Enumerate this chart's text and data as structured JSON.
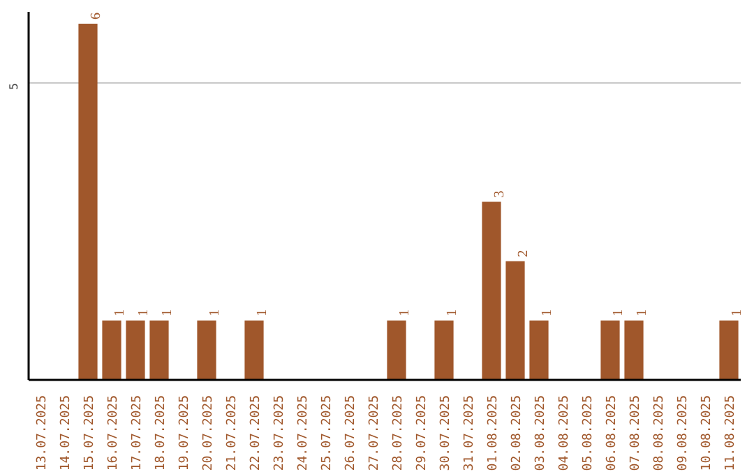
{
  "chart_data": {
    "type": "bar",
    "categories": [
      "13.07.2025",
      "14.07.2025",
      "15.07.2025",
      "16.07.2025",
      "17.07.2025",
      "18.07.2025",
      "19.07.2025",
      "20.07.2025",
      "21.07.2025",
      "22.07.2025",
      "23.07.2025",
      "24.07.2025",
      "25.07.2025",
      "26.07.2025",
      "27.07.2025",
      "28.07.2025",
      "29.07.2025",
      "30.07.2025",
      "31.07.2025",
      "01.08.2025",
      "02.08.2025",
      "03.08.2025",
      "04.08.2025",
      "05.08.2025",
      "06.08.2025",
      "07.08.2025",
      "08.08.2025",
      "09.08.2025",
      "10.08.2025",
      "11.08.2025"
    ],
    "values": [
      0,
      0,
      6,
      1,
      1,
      1,
      0,
      1,
      0,
      1,
      0,
      0,
      0,
      0,
      0,
      1,
      0,
      1,
      0,
      3,
      2,
      1,
      0,
      0,
      1,
      1,
      0,
      0,
      0,
      1
    ],
    "value_labels": [
      null,
      null,
      "6",
      "1",
      "1",
      "1",
      null,
      "1",
      null,
      "1",
      null,
      null,
      null,
      null,
      null,
      "1",
      null,
      "1",
      null,
      "3",
      "2",
      "1",
      null,
      null,
      "1",
      "1",
      null,
      null,
      null,
      "1"
    ],
    "color": "#a0572b",
    "ylim": [
      0,
      6.2
    ],
    "yticks": [
      5
    ],
    "grid": "y"
  }
}
